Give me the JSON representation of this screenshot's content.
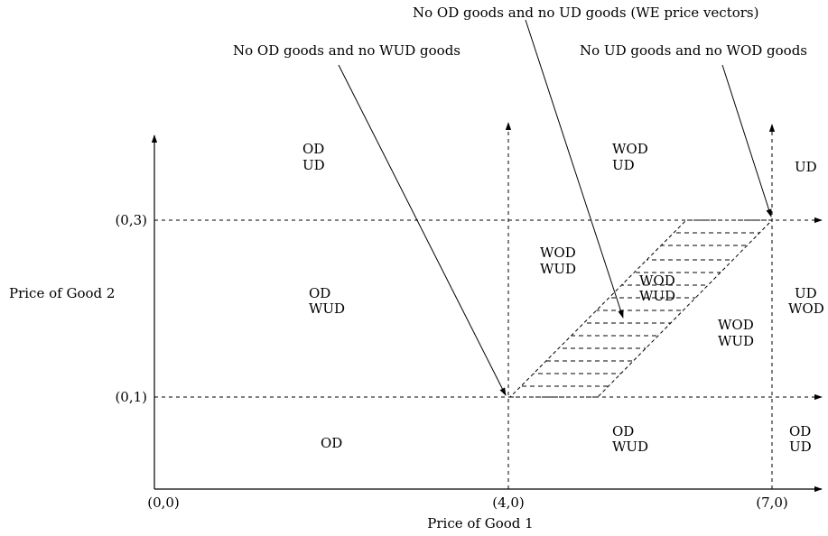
{
  "axes": {
    "x_label": "Price of Good 1",
    "y_label": "Price of Good 2",
    "x_ticks": [
      "(0,0)",
      "(4,0)",
      "(7,0)"
    ],
    "y_ticks": [
      "(0,1)",
      "(0,3)"
    ]
  },
  "callouts": {
    "no_od_no_wud": "No OD goods and no WUD goods",
    "no_od_no_ud": "No OD goods and no UD goods (WE price vectors)",
    "no_ud_no_wod": "No UD goods and no WOD goods"
  },
  "regions": {
    "top_left": [
      "OD",
      "UD"
    ],
    "top_middle": [
      "WOD",
      "UD"
    ],
    "top_right": [
      "UD"
    ],
    "mid_left": [
      "OD",
      "WUD"
    ],
    "mid_center": [
      "WOD",
      "WUD"
    ],
    "hatched": [
      "WOD",
      "WUD"
    ],
    "mid_lower": [
      "WOD",
      "WUD"
    ],
    "mid_right": [
      "UD",
      "WOD"
    ],
    "bottom_left": [
      "OD"
    ],
    "bottom_middle": [
      "OD",
      "WUD"
    ],
    "bottom_right": [
      "OD",
      "UD"
    ]
  },
  "colors": {
    "ink": "#000000",
    "background": "#ffffff"
  }
}
